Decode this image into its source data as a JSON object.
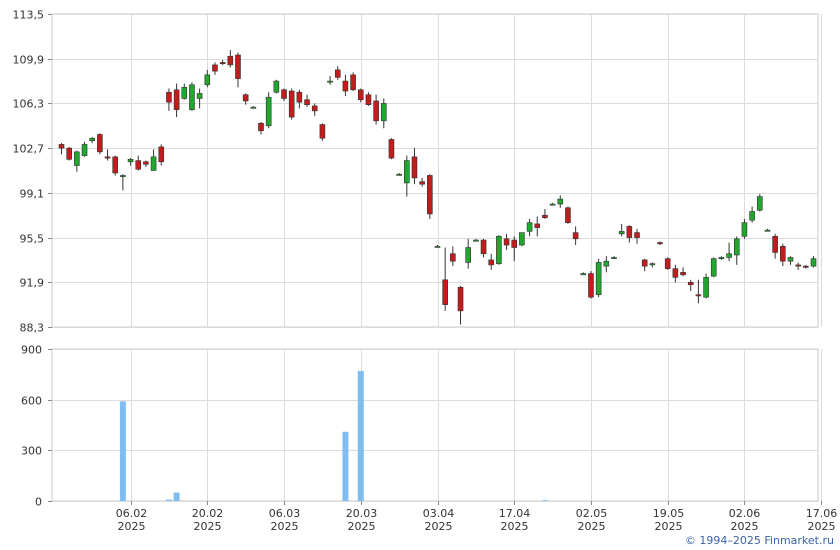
{
  "chart_data": [
    {
      "type": "candlestick",
      "title": "",
      "ylim": [
        88.3,
        113.5
      ],
      "yticks": [
        "113,5",
        "109,9",
        "106,3",
        "102,7",
        "99,1",
        "95,5",
        "91,9",
        "88,3"
      ],
      "ytick_values": [
        113.5,
        109.9,
        106.3,
        102.7,
        99.1,
        95.5,
        91.9,
        88.3
      ],
      "grid": true,
      "up_color": "#22a62e",
      "down_color": "#c11d1d",
      "candles": [
        [
          103.0,
          103.1,
          102.2,
          102.7
        ],
        [
          102.7,
          102.8,
          101.7,
          101.8
        ],
        [
          101.3,
          102.5,
          100.8,
          102.4
        ],
        [
          102.1,
          103.2,
          102.0,
          103.0
        ],
        [
          103.3,
          103.6,
          103.1,
          103.5
        ],
        [
          103.8,
          103.9,
          102.2,
          102.4
        ],
        [
          102.0,
          102.6,
          101.7,
          101.9
        ],
        [
          102.0,
          102.1,
          100.5,
          100.7
        ],
        [
          100.5,
          100.6,
          99.3,
          100.5
        ],
        [
          101.6,
          101.9,
          101.3,
          101.8
        ],
        [
          101.7,
          102.1,
          100.9,
          101.0
        ],
        [
          101.6,
          101.7,
          101.2,
          101.4
        ],
        [
          100.9,
          102.6,
          100.9,
          102.0
        ],
        [
          102.8,
          103.0,
          101.3,
          101.6
        ],
        [
          107.2,
          107.5,
          105.7,
          106.4
        ],
        [
          107.4,
          107.9,
          105.2,
          105.8
        ],
        [
          106.7,
          107.9,
          106.6,
          107.6
        ],
        [
          105.8,
          108.0,
          105.7,
          107.8
        ],
        [
          106.7,
          107.5,
          105.9,
          107.1
        ],
        [
          107.8,
          109.0,
          107.6,
          108.6
        ],
        [
          109.4,
          109.6,
          108.6,
          108.9
        ],
        [
          109.6,
          109.8,
          109.4,
          109.5
        ],
        [
          110.1,
          110.6,
          109.2,
          109.4
        ],
        [
          110.2,
          110.4,
          107.6,
          108.3
        ],
        [
          107.0,
          107.1,
          106.2,
          106.5
        ],
        [
          106.0,
          106.1,
          105.9,
          106.0
        ],
        [
          104.7,
          104.8,
          103.8,
          104.1
        ],
        [
          104.5,
          107.2,
          104.3,
          106.8
        ],
        [
          107.2,
          108.2,
          107.1,
          108.1
        ],
        [
          107.4,
          107.5,
          106.5,
          106.7
        ],
        [
          107.3,
          107.5,
          105.0,
          105.2
        ],
        [
          107.2,
          107.4,
          105.9,
          106.4
        ],
        [
          106.6,
          107.0,
          106.0,
          106.2
        ],
        [
          106.1,
          106.3,
          105.3,
          105.7
        ],
        [
          104.6,
          104.7,
          103.3,
          103.5
        ],
        [
          108.1,
          108.5,
          107.8,
          108.1
        ],
        [
          109.0,
          109.3,
          108.2,
          108.4
        ],
        [
          108.1,
          108.6,
          106.9,
          107.3
        ],
        [
          108.6,
          108.8,
          107.3,
          107.4
        ],
        [
          107.4,
          107.5,
          106.4,
          106.6
        ],
        [
          107.0,
          107.2,
          106.1,
          106.2
        ],
        [
          106.5,
          107.0,
          104.6,
          104.9
        ],
        [
          104.9,
          106.7,
          104.3,
          106.3
        ],
        [
          103.4,
          103.5,
          101.8,
          101.9
        ],
        [
          100.6,
          100.7,
          100.5,
          100.6
        ],
        [
          99.9,
          102.1,
          98.8,
          101.7
        ],
        [
          102.0,
          102.7,
          99.8,
          100.3
        ],
        [
          100.0,
          100.3,
          99.6,
          99.8
        ],
        [
          100.5,
          100.6,
          97.0,
          97.4
        ],
        [
          94.8,
          94.9,
          94.7,
          94.8
        ],
        [
          92.1,
          94.7,
          89.6,
          90.1
        ],
        [
          94.2,
          94.8,
          93.2,
          93.6
        ],
        [
          91.5,
          91.6,
          88.5,
          89.6
        ],
        [
          93.5,
          95.4,
          93.0,
          94.7
        ],
        [
          95.3,
          95.4,
          95.2,
          95.3
        ],
        [
          95.3,
          95.4,
          93.9,
          94.2
        ],
        [
          93.7,
          94.2,
          92.9,
          93.3
        ],
        [
          93.4,
          95.7,
          93.3,
          95.6
        ],
        [
          95.4,
          95.8,
          94.5,
          94.9
        ],
        [
          95.3,
          95.6,
          93.6,
          94.7
        ],
        [
          94.9,
          95.9,
          94.8,
          95.9
        ],
        [
          96.0,
          97.0,
          95.6,
          96.7
        ],
        [
          96.6,
          97.2,
          95.6,
          96.3
        ],
        [
          97.3,
          97.8,
          97.0,
          97.1
        ],
        [
          98.2,
          98.3,
          98.2,
          98.2
        ],
        [
          98.2,
          98.9,
          97.9,
          98.6
        ],
        [
          97.9,
          98.0,
          96.6,
          96.7
        ],
        [
          95.9,
          96.4,
          94.9,
          95.4
        ],
        [
          92.6,
          92.7,
          92.5,
          92.6
        ],
        [
          92.6,
          92.8,
          90.6,
          90.7
        ],
        [
          90.9,
          93.8,
          90.7,
          93.5
        ],
        [
          93.2,
          94.0,
          92.7,
          93.6
        ],
        [
          93.9,
          94.0,
          93.8,
          93.9
        ],
        [
          95.8,
          96.6,
          95.6,
          96.0
        ],
        [
          96.4,
          96.5,
          95.1,
          95.5
        ],
        [
          95.9,
          96.2,
          95.0,
          95.5
        ],
        [
          93.7,
          93.8,
          92.8,
          93.2
        ],
        [
          93.3,
          93.5,
          93.1,
          93.4
        ],
        [
          95.1,
          95.2,
          94.9,
          95.0
        ],
        [
          93.8,
          93.9,
          92.9,
          93.0
        ],
        [
          93.0,
          93.3,
          91.9,
          92.3
        ],
        [
          92.7,
          93.1,
          92.4,
          92.5
        ],
        [
          91.9,
          92.1,
          91.2,
          91.7
        ],
        [
          90.9,
          92.1,
          90.2,
          90.8
        ],
        [
          90.7,
          92.6,
          90.6,
          92.3
        ],
        [
          92.4,
          93.9,
          92.3,
          93.8
        ],
        [
          93.8,
          94.0,
          93.7,
          93.9
        ],
        [
          93.9,
          95.1,
          93.6,
          94.2
        ],
        [
          94.1,
          95.6,
          93.3,
          95.4
        ],
        [
          95.6,
          97.0,
          95.4,
          96.7
        ],
        [
          96.9,
          98.0,
          96.7,
          97.6
        ],
        [
          97.7,
          99.0,
          97.6,
          98.8
        ],
        [
          96.1,
          96.2,
          96.0,
          96.1
        ],
        [
          95.6,
          95.8,
          93.8,
          94.3
        ],
        [
          94.8,
          95.0,
          93.2,
          93.6
        ],
        [
          93.6,
          94.0,
          93.3,
          93.9
        ],
        [
          93.3,
          93.5,
          92.9,
          93.2
        ],
        [
          93.2,
          93.3,
          93.0,
          93.1
        ],
        [
          93.2,
          94.0,
          93.1,
          93.8
        ]
      ],
      "xticks": [
        {
          "label": "06.02",
          "year": "2025",
          "index": 9
        },
        {
          "label": "20.02",
          "year": "2025",
          "index": 19
        },
        {
          "label": "06.03",
          "year": "2025",
          "index": 29
        },
        {
          "label": "20.03",
          "year": "2025",
          "index": 39
        },
        {
          "label": "03.04",
          "year": "2025",
          "index": 49
        },
        {
          "label": "17.04",
          "year": "2025",
          "index": 59
        },
        {
          "label": "02.05",
          "year": "2025",
          "index": 69
        },
        {
          "label": "19.05",
          "year": "2025",
          "index": 79
        },
        {
          "label": "02.06",
          "year": "2025",
          "index": 89
        },
        {
          "label": "17.06",
          "year": "2025",
          "index": 99
        }
      ]
    },
    {
      "type": "bar",
      "title": "",
      "ylim": [
        0,
        900
      ],
      "yticks": [
        "900",
        "600",
        "300",
        "0"
      ],
      "ytick_values": [
        900,
        600,
        300,
        0
      ],
      "bar_color": "#7fbdf0",
      "volumes": [
        {
          "index": 8,
          "value": 590
        },
        {
          "index": 14,
          "value": 8
        },
        {
          "index": 15,
          "value": 50
        },
        {
          "index": 37,
          "value": 410
        },
        {
          "index": 39,
          "value": 770
        },
        {
          "index": 63,
          "value": 5
        }
      ]
    }
  ],
  "footer": {
    "credit": "© 1994–2025 Finmarket.ru"
  }
}
